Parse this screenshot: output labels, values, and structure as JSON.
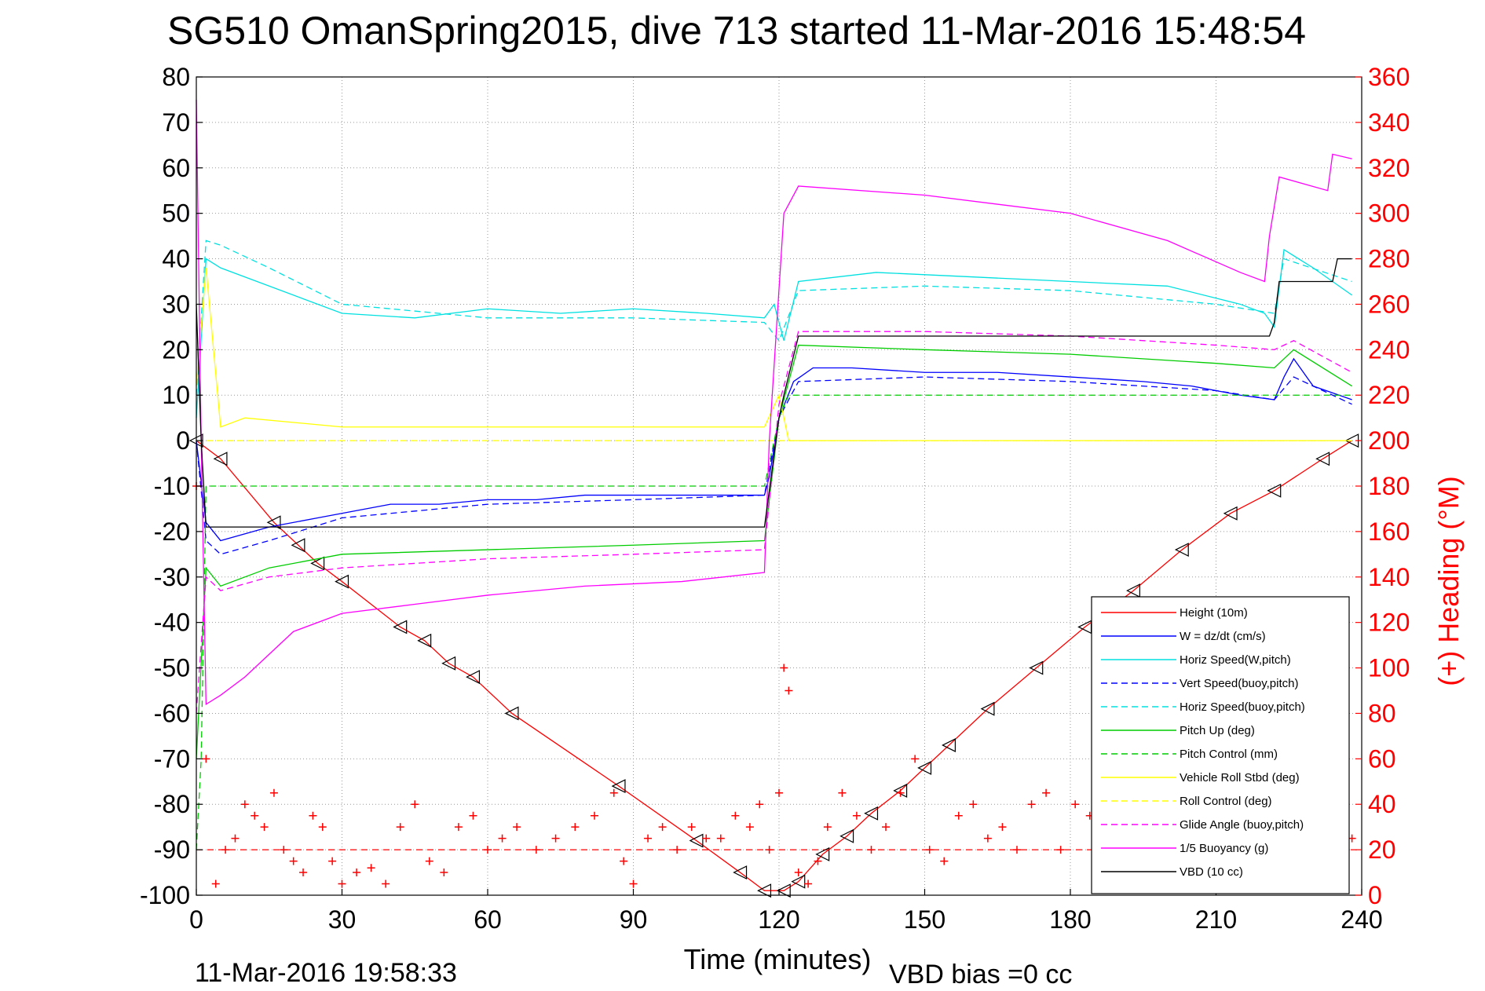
{
  "chart_data": {
    "type": "line",
    "title": "SG510 OmanSpring2015, dive 713 started 11-Mar-2016 15:48:54",
    "xlabel": "Time (minutes)",
    "y2label": "(+) Heading (°M)",
    "xlim": [
      0,
      240
    ],
    "ylim": [
      -100,
      80
    ],
    "y2lim": [
      0,
      360
    ],
    "xticks": [
      "0",
      "30",
      "60",
      "90",
      "120",
      "150",
      "180",
      "210",
      "240"
    ],
    "yticks": [
      "80",
      "70",
      "60",
      "50",
      "40",
      "30",
      "20",
      "10",
      "0",
      "-10",
      "-20",
      "-30",
      "-40",
      "-50",
      "-60",
      "-70",
      "-80",
      "-90",
      "-100"
    ],
    "y2ticks": [
      "360",
      "340",
      "320",
      "300",
      "280",
      "260",
      "240",
      "220",
      "200",
      "180",
      "160",
      "140",
      "120",
      "100",
      "80",
      "60",
      "40",
      "20",
      "0"
    ],
    "footer_left": "11-Mar-2016 19:58:33",
    "footer_right": "VBD bias =0 cc",
    "grid": true,
    "legend_position": "bottom-right",
    "series": [
      {
        "name": "Height (10m)",
        "color": "#ff0000",
        "style": "solid",
        "x": [
          0,
          5,
          16,
          21,
          25,
          30,
          42,
          47,
          52,
          57,
          65,
          87,
          103,
          112,
          117,
          121,
          124,
          129,
          134,
          139,
          145,
          150,
          155,
          163,
          173,
          183,
          193,
          203,
          213,
          222,
          232,
          238
        ],
        "y": [
          0,
          -4,
          -18,
          -23,
          -27,
          -31,
          -41,
          -44,
          -49,
          -52,
          -60,
          -76,
          -88,
          -95,
          -99,
          -99,
          -97,
          -91,
          -87,
          -82,
          -77,
          -72,
          -67,
          -59,
          -50,
          -41,
          -33,
          -24,
          -16,
          -11,
          -4,
          0
        ]
      },
      {
        "name": "W = dz/dt (cm/s)",
        "color": "#0000ff",
        "style": "solid",
        "x": [
          0,
          2,
          5,
          15,
          25,
          40,
          50,
          60,
          70,
          80,
          90,
          100,
          110,
          117,
          118,
          120,
          123,
          127,
          135,
          150,
          165,
          180,
          195,
          205,
          215,
          222,
          224,
          226,
          230,
          238
        ],
        "y": [
          0,
          -18,
          -22,
          -19,
          -17,
          -14,
          -14,
          -13,
          -13,
          -12,
          -12,
          -12,
          -12,
          -12,
          -8,
          5,
          13,
          16,
          16,
          15,
          15,
          14,
          13,
          12,
          10,
          9,
          14,
          18,
          12,
          9
        ]
      },
      {
        "name": "Horiz Speed(W,pitch)",
        "color": "#00e0e0",
        "style": "solid",
        "x": [
          0,
          2,
          5,
          15,
          30,
          45,
          60,
          75,
          90,
          105,
          117,
          119,
          121,
          124,
          140,
          160,
          180,
          200,
          215,
          220,
          222,
          224,
          230,
          238
        ],
        "y": [
          5,
          40,
          38,
          34,
          28,
          27,
          29,
          28,
          29,
          28,
          27,
          30,
          22,
          35,
          37,
          36,
          35,
          34,
          30,
          28,
          25,
          42,
          38,
          32
        ]
      },
      {
        "name": "Vert Speed(buoy,pitch)",
        "color": "#0000ff",
        "style": "dashed",
        "x": [
          0,
          2,
          5,
          15,
          30,
          60,
          90,
          117,
          120,
          124,
          150,
          180,
          210,
          222,
          226,
          238
        ],
        "y": [
          0,
          -22,
          -25,
          -22,
          -17,
          -14,
          -13,
          -12,
          5,
          13,
          14,
          13,
          11,
          9,
          14,
          8
        ]
      },
      {
        "name": "Horiz Speed(buoy,pitch)",
        "color": "#00e0e0",
        "style": "dashed",
        "x": [
          0,
          2,
          5,
          15,
          30,
          60,
          90,
          117,
          120,
          124,
          150,
          180,
          210,
          222,
          224,
          238
        ],
        "y": [
          10,
          44,
          43,
          38,
          30,
          27,
          27,
          26,
          22,
          33,
          34,
          33,
          30,
          28,
          40,
          35
        ]
      },
      {
        "name": "Pitch Up (deg)",
        "color": "#00cc00",
        "style": "solid",
        "x": [
          0,
          2,
          5,
          15,
          30,
          60,
          90,
          117,
          120,
          124,
          150,
          180,
          210,
          222,
          226,
          238
        ],
        "y": [
          -70,
          -28,
          -32,
          -28,
          -25,
          -24,
          -23,
          -22,
          5,
          21,
          20,
          19,
          17,
          16,
          20,
          12
        ]
      },
      {
        "name": "Pitch Control (mm)",
        "color": "#00cc00",
        "style": "dashed",
        "x": [
          0,
          1,
          2,
          117,
          120,
          122,
          238
        ],
        "y": [
          -90,
          -70,
          -10,
          -10,
          5,
          10,
          10
        ]
      },
      {
        "name": "Vehicle Roll Stbd (deg)",
        "color": "#ffff00",
        "style": "solid",
        "x": [
          0,
          2,
          5,
          10,
          30,
          60,
          90,
          117,
          120,
          122,
          150,
          180,
          210,
          238
        ],
        "y": [
          12,
          38,
          3,
          5,
          3,
          3,
          3,
          3,
          10,
          0,
          0,
          0,
          0,
          0
        ]
      },
      {
        "name": "Roll Control (deg)",
        "color": "#ffff00",
        "style": "dashed",
        "x": [
          0,
          2,
          5,
          117,
          120,
          238
        ],
        "y": [
          0,
          0,
          0,
          0,
          0,
          0
        ]
      },
      {
        "name": "Glide Angle (buoy,pitch)",
        "color": "#ff00ff",
        "style": "dashed",
        "x": [
          0,
          2,
          5,
          15,
          30,
          60,
          90,
          117,
          120,
          124,
          150,
          180,
          210,
          222,
          226,
          238
        ],
        "y": [
          -60,
          -30,
          -33,
          -30,
          -28,
          -26,
          -25,
          -24,
          8,
          24,
          24,
          23,
          21,
          20,
          22,
          15
        ]
      },
      {
        "name": "1/5 Buoyancy (g)",
        "color": "#ff00ff",
        "style": "solid",
        "x": [
          0,
          1,
          2,
          5,
          10,
          20,
          30,
          45,
          60,
          80,
          100,
          117,
          118,
          121,
          124,
          150,
          180,
          200,
          215,
          220,
          221,
          223,
          233,
          234,
          238
        ],
        "y": [
          75,
          0,
          -58,
          -56,
          -52,
          -42,
          -38,
          -36,
          -34,
          -32,
          -31,
          -29,
          0,
          50,
          56,
          54,
          50,
          44,
          37,
          35,
          45,
          58,
          55,
          63,
          62
        ]
      },
      {
        "name": "VBD (10 cc)",
        "color": "#000000",
        "style": "solid",
        "x": [
          0,
          1,
          2,
          117,
          120,
          121,
          124,
          221,
          222,
          223,
          234,
          235,
          238
        ],
        "y": [
          30,
          0,
          -19,
          -19,
          5,
          10,
          23,
          23,
          26,
          35,
          35,
          40,
          40
        ]
      },
      {
        "name": "Heading",
        "color": "#ff0000",
        "style": "markers",
        "marker": "+",
        "axis": "right",
        "x": [
          0,
          2,
          4,
          6,
          8,
          10,
          12,
          14,
          16,
          18,
          20,
          22,
          24,
          26,
          28,
          30,
          33,
          36,
          39,
          42,
          45,
          48,
          51,
          54,
          57,
          60,
          63,
          66,
          70,
          74,
          78,
          82,
          86,
          88,
          90,
          93,
          96,
          99,
          102,
          105,
          108,
          111,
          114,
          116,
          118,
          120,
          121,
          122,
          124,
          126,
          128,
          130,
          133,
          136,
          139,
          142,
          145,
          148,
          151,
          154,
          157,
          160,
          163,
          166,
          169,
          172,
          175,
          178,
          181,
          184,
          187,
          190,
          193,
          196,
          199,
          202,
          205,
          208,
          211,
          214,
          217,
          220,
          223,
          226,
          229,
          232,
          235,
          238
        ],
        "y": [
          180,
          60,
          5,
          20,
          25,
          40,
          35,
          30,
          45,
          20,
          15,
          10,
          35,
          30,
          15,
          5,
          10,
          12,
          5,
          30,
          40,
          15,
          10,
          30,
          35,
          20,
          25,
          30,
          20,
          25,
          30,
          35,
          45,
          15,
          5,
          25,
          30,
          20,
          30,
          25,
          25,
          35,
          30,
          40,
          20,
          45,
          100,
          90,
          10,
          5,
          15,
          30,
          45,
          35,
          20,
          30,
          45,
          60,
          20,
          15,
          35,
          40,
          25,
          30,
          20,
          40,
          45,
          20,
          40,
          35,
          10,
          40,
          30,
          15,
          25,
          15,
          20,
          10,
          15,
          15,
          30,
          20,
          25,
          20,
          10,
          20,
          30,
          25
        ]
      }
    ]
  }
}
